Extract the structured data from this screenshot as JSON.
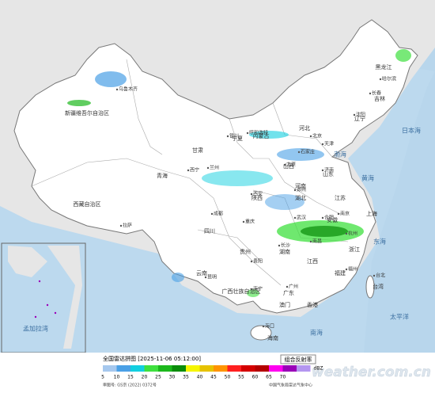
{
  "header": {
    "title": "全国雷达拼图 [2025-11-06 05:12:00]",
    "product": "组合反射率"
  },
  "legend": {
    "ticks": [
      5,
      10,
      15,
      20,
      25,
      30,
      35,
      40,
      45,
      50,
      55,
      60,
      65,
      70
    ],
    "unit": "dBZ",
    "colors": [
      "#a6c8ee",
      "#4aa0e6",
      "#12cfe0",
      "#3fe03f",
      "#1cb81c",
      "#0a8c0a",
      "#f5f500",
      "#e6c200",
      "#ff9400",
      "#ff2020",
      "#d40000",
      "#b40000",
      "#ff00f0",
      "#9a00b8",
      "#b496f0"
    ]
  },
  "footer": {
    "approval": "审图号: GS京 (2022) 0372号",
    "agency": "中国气象局雷达气象中心",
    "watermark": "weather.com.cn"
  },
  "regions": [
    "新疆维吾尔自治区",
    "西藏自治区",
    "青海",
    "甘肃",
    "内蒙古",
    "黑龙江",
    "吉林",
    "辽宁",
    "河北",
    "山西",
    "山东",
    "陕西",
    "宁夏",
    "四川",
    "云南",
    "贵州",
    "湖北",
    "湖南",
    "河南",
    "江苏",
    "安徽",
    "浙江",
    "江西",
    "福建",
    "广东",
    "广西壮族自治区",
    "海南",
    "台湾",
    "上海",
    "香港",
    "澳门"
  ],
  "cities": [
    "乌鲁木齐",
    "拉萨",
    "哈尔滨",
    "长春",
    "沈阳",
    "呼和浩特",
    "银川",
    "兰州",
    "西宁",
    "西安",
    "太原",
    "北京",
    "天津",
    "石家庄",
    "济南",
    "郑州",
    "武汉",
    "南京",
    "合肥",
    "杭州",
    "南昌",
    "长沙",
    "贵阳",
    "昆明",
    "成都",
    "重庆",
    "南宁",
    "广州",
    "福州",
    "台北",
    "海口"
  ],
  "seas": [
    "日本海",
    "黄海",
    "东海",
    "太平洋",
    "渤海",
    "孟加拉湾",
    "南海"
  ]
}
